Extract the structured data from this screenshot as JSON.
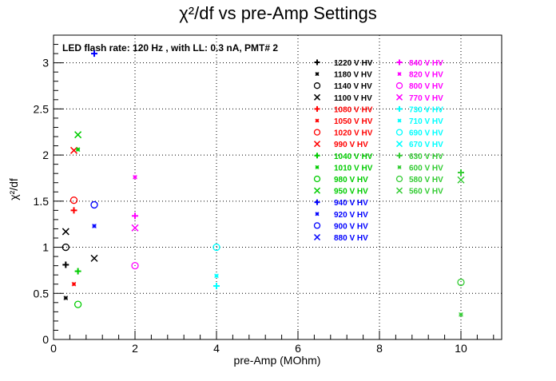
{
  "chart_data": {
    "type": "scatter",
    "title": "χ²/df vs pre-Amp Settings",
    "subtitle": "LED flash rate: 120 Hz , with LL: 0.3 nA, PMT# 2",
    "xlabel": "pre-Amp (MOhm)",
    "ylabel": "χ²/df",
    "xlim": [
      0,
      11
    ],
    "ylim": [
      0,
      3.3
    ],
    "xticks": [
      0,
      2,
      4,
      6,
      8,
      10
    ],
    "xtick_labels": [
      "0",
      "2",
      "4",
      "6",
      "8",
      "10"
    ],
    "yticks": [
      0,
      0.5,
      1,
      1.5,
      2,
      2.5,
      3
    ],
    "ytick_labels": [
      "0",
      "0.5",
      "1",
      "1.5",
      "2",
      "2.5",
      "3"
    ],
    "grid": true,
    "legend_placement": "top-right",
    "series": [
      {
        "name": "1220 V HV",
        "color": "#000000",
        "marker": "plus",
        "points": [
          [
            0.3,
            0.81
          ]
        ]
      },
      {
        "name": "1180 V HV",
        "color": "#000000",
        "marker": "star",
        "points": [
          [
            0.3,
            0.45
          ]
        ]
      },
      {
        "name": "1140 V HV",
        "color": "#000000",
        "marker": "circle",
        "points": [
          [
            0.3,
            1.0
          ]
        ]
      },
      {
        "name": "1100 V HV",
        "color": "#000000",
        "marker": "x",
        "points": [
          [
            0.3,
            1.17
          ],
          [
            1.0,
            0.88
          ]
        ]
      },
      {
        "name": "1080 V HV",
        "color": "#ff0000",
        "marker": "plus",
        "points": [
          [
            0.5,
            1.4
          ]
        ]
      },
      {
        "name": "1050 V HV",
        "color": "#ff0000",
        "marker": "star",
        "points": [
          [
            0.5,
            0.6
          ]
        ]
      },
      {
        "name": "1020 V HV",
        "color": "#ff0000",
        "marker": "circle",
        "points": [
          [
            0.5,
            1.51
          ]
        ]
      },
      {
        "name": "990 V HV",
        "color": "#ff0000",
        "marker": "x",
        "points": [
          [
            0.5,
            2.05
          ]
        ]
      },
      {
        "name": "1040 V HV",
        "color": "#00cc00",
        "marker": "plus",
        "points": [
          [
            0.6,
            0.74
          ]
        ]
      },
      {
        "name": "1010 V HV",
        "color": "#00cc00",
        "marker": "star",
        "points": [
          [
            0.6,
            2.06
          ]
        ]
      },
      {
        "name": "980 V HV",
        "color": "#00cc00",
        "marker": "circle",
        "points": [
          [
            0.6,
            0.38
          ]
        ]
      },
      {
        "name": "950 V HV",
        "color": "#00cc00",
        "marker": "x",
        "points": [
          [
            0.6,
            2.22
          ]
        ]
      },
      {
        "name": "940 V HV",
        "color": "#0000ff",
        "marker": "plus",
        "points": [
          [
            1.0,
            3.1
          ]
        ]
      },
      {
        "name": "920 V HV",
        "color": "#0000ff",
        "marker": "star",
        "points": [
          [
            1.0,
            1.23
          ]
        ]
      },
      {
        "name": "900 V HV",
        "color": "#0000ff",
        "marker": "circle",
        "points": [
          [
            1.0,
            1.46
          ]
        ]
      },
      {
        "name": "880 V HV",
        "color": "#0000ff",
        "marker": "x",
        "points": []
      },
      {
        "name": "840 V HV",
        "color": "#ff00ff",
        "marker": "plus",
        "points": [
          [
            2.0,
            1.34
          ]
        ]
      },
      {
        "name": "820 V HV",
        "color": "#ff00ff",
        "marker": "star",
        "points": [
          [
            2.0,
            1.76
          ]
        ]
      },
      {
        "name": "800 V HV",
        "color": "#ff00ff",
        "marker": "circle",
        "points": [
          [
            2.0,
            0.8
          ]
        ]
      },
      {
        "name": "770 V HV",
        "color": "#ff00ff",
        "marker": "x",
        "points": [
          [
            2.0,
            1.21
          ]
        ]
      },
      {
        "name": "730 V HV",
        "color": "#00ffff",
        "marker": "plus",
        "points": [
          [
            4.0,
            0.58
          ]
        ]
      },
      {
        "name": "710 V HV",
        "color": "#00ffff",
        "marker": "star",
        "points": [
          [
            4.0,
            0.69
          ]
        ]
      },
      {
        "name": "690 V HV",
        "color": "#00ffff",
        "marker": "circle",
        "points": [
          [
            4.0,
            1.0
          ]
        ]
      },
      {
        "name": "670 V HV",
        "color": "#00ffff",
        "marker": "x",
        "points": []
      },
      {
        "name": "630 V HV",
        "color": "#33cc33",
        "marker": "plus",
        "points": [
          [
            10.0,
            1.81
          ]
        ]
      },
      {
        "name": "600 V HV",
        "color": "#33cc33",
        "marker": "star",
        "points": [
          [
            10.0,
            0.27
          ]
        ]
      },
      {
        "name": "580 V HV",
        "color": "#33cc33",
        "marker": "circle",
        "points": [
          [
            10.0,
            0.62
          ]
        ]
      },
      {
        "name": "560 V HV",
        "color": "#33cc33",
        "marker": "x",
        "points": [
          [
            10.0,
            1.73
          ]
        ]
      }
    ]
  }
}
